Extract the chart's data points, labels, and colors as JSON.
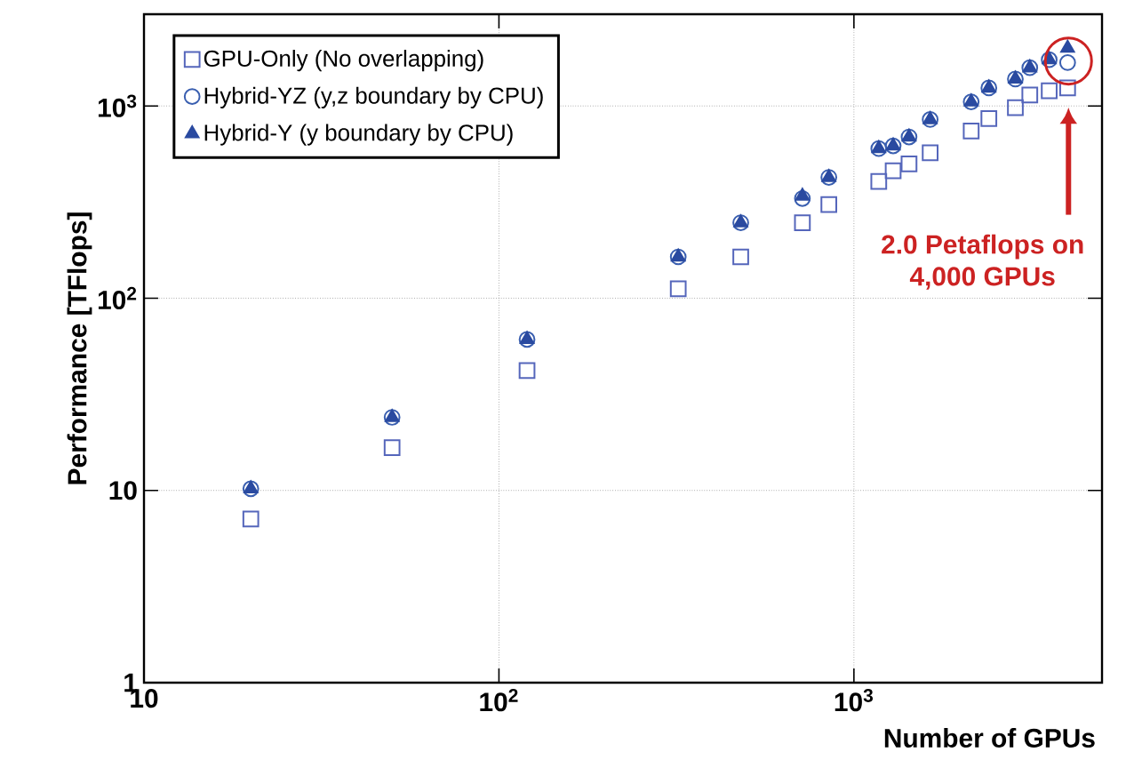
{
  "chart_data": {
    "type": "scatter",
    "xlabel": "Number of GPUs",
    "ylabel": "Performance [TFlops]",
    "log": "xy",
    "grid": true,
    "legend": "top left",
    "xlim": [
      10,
      5000
    ],
    "ylim": [
      1,
      3000
    ],
    "xticks": [
      10,
      {
        "value": 100,
        "label": "10$^{2}$"
      },
      {
        "value": 1000,
        "label": "10$^{3}$"
      }
    ],
    "yticks": [
      1,
      10,
      {
        "value": 100,
        "label": "10$^{2}$"
      },
      {
        "value": 1000,
        "label": "10$^{3}$"
      }
    ],
    "x": [
      20,
      50,
      120,
      320,
      480,
      716,
      850,
      1175,
      1290,
      1430,
      1640,
      2140,
      2400,
      2850,
      3130,
      3550,
      4000
    ],
    "series": [
      {
        "name": "GPU-Only (No overlapping)",
        "color": "#5566bb",
        "marker": "square",
        "values": [
          7.1,
          16.7,
          42,
          112,
          164,
          247,
          307,
          405,
          460,
          500,
          570,
          740,
          860,
          980,
          1140,
          1200,
          1240
        ]
      },
      {
        "name": "Hybrid-YZ (y,z boundary by CPU)",
        "color": "#3a5fb0",
        "marker": "circle",
        "values": [
          10.2,
          24,
          61,
          164,
          247,
          330,
          425,
          600,
          620,
          690,
          850,
          1050,
          1240,
          1380,
          1580,
          1740,
          1680
        ]
      },
      {
        "name": "Hybrid-Y (y boundary by CPU)",
        "color": "#2a4aa0",
        "marker": "triangle",
        "values": [
          10.2,
          24,
          61,
          164,
          247,
          340,
          425,
          600,
          620,
          690,
          850,
          1050,
          1240,
          1380,
          1580,
          1740,
          2000
        ]
      }
    ],
    "annotations": [
      "2.0 Petaflops on 4,000 GPUs"
    ]
  }
}
